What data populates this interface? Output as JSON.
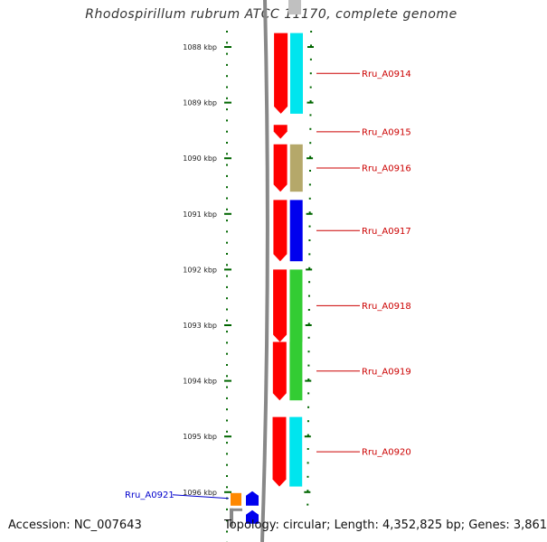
{
  "title": "Rhodospirillum rubrum ATCC 11170, complete genome",
  "footer": {
    "accession": "Accession: NC_007643",
    "stats": "Topology: circular; Length: 4,352,825 bp; Genes: 3,861"
  },
  "ruler_unit": "kbp",
  "ruler_ticks": [
    {
      "value": 1088,
      "label": "1088 kbp"
    },
    {
      "value": 1089,
      "label": "1089 kbp"
    },
    {
      "value": 1090,
      "label": "1090 kbp"
    },
    {
      "value": 1091,
      "label": "1091 kbp"
    },
    {
      "value": 1092,
      "label": "1092 kbp"
    },
    {
      "value": 1093,
      "label": "1093 kbp"
    },
    {
      "value": 1094,
      "label": "1094 kbp"
    },
    {
      "value": 1095,
      "label": "1095 kbp"
    },
    {
      "value": 1096,
      "label": "1096 kbp"
    }
  ],
  "genes": [
    {
      "name": "Rru_A0914",
      "start_kbp": 1087.75,
      "end_kbp": 1089.2,
      "cog_color": "#00e5ee",
      "label_color": "#cc0000"
    },
    {
      "name": "Rru_A0915",
      "start_kbp": 1089.4,
      "end_kbp": 1089.65,
      "cog_color": "",
      "label_color": "#cc0000"
    },
    {
      "name": "Rru_A0916",
      "start_kbp": 1089.75,
      "end_kbp": 1090.6,
      "cog_color": "#b5a86a",
      "label_color": "#cc0000"
    },
    {
      "name": "Rru_A0917",
      "start_kbp": 1090.75,
      "end_kbp": 1091.85,
      "cog_color": "#0000ee",
      "label_color": "#cc0000"
    },
    {
      "name": "Rru_A0918",
      "start_kbp": 1092.0,
      "end_kbp": 1093.3,
      "cog_color": "#33cc33",
      "label_color": "#cc0000"
    },
    {
      "name": "Rru_A0919",
      "start_kbp": 1093.3,
      "end_kbp": 1094.35,
      "cog_color": "#33cc33",
      "label_color": "#cc0000"
    },
    {
      "name": "Rru_A0920",
      "start_kbp": 1094.65,
      "end_kbp": 1095.9,
      "cog_color": "#00e5ee",
      "label_color": "#cc0000"
    },
    {
      "name": "Rru_A0921",
      "start_kbp": 1096.0,
      "end_kbp": 1096.3,
      "cog_color": "#ff8800",
      "label_color": "#0000cc"
    }
  ],
  "colors": {
    "forward_strand": "#ff0000",
    "reverse_strand": "#0000ee",
    "backbone": "#888888",
    "ruler": "#006600",
    "cog_none": "#c0c0c0"
  }
}
